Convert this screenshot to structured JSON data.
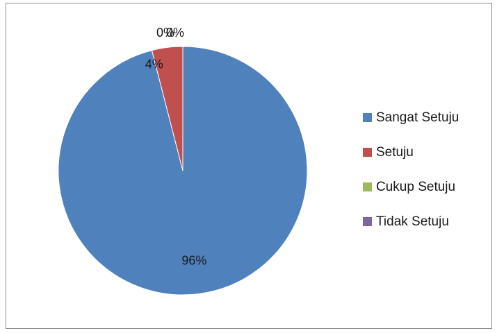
{
  "chart_data": {
    "type": "pie",
    "title": "",
    "categories": [
      "Sangat Setuju",
      "Setuju",
      "Cukup Setuju",
      "Tidak Setuju"
    ],
    "values": [
      96,
      4,
      0,
      0
    ],
    "labels": [
      "96%",
      "4%",
      "0%",
      "0%"
    ],
    "colors": [
      "#4F81BD",
      "#C0504D",
      "#9BBB59",
      "#8064A2"
    ],
    "legend": "right",
    "start_angle_deg": 0,
    "direction": "clockwise"
  }
}
